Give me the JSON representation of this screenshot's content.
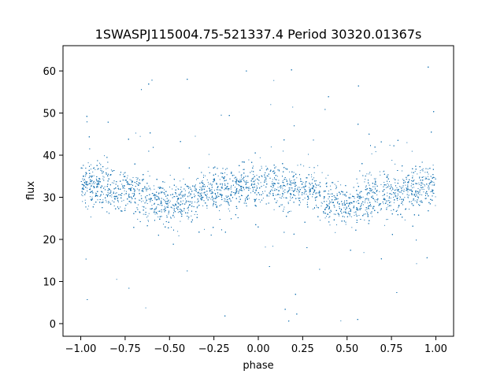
{
  "chart_data": {
    "type": "scatter",
    "title": "1SWASPJ115004.75-521337.4 Period 30320.01367s",
    "xlabel": "phase",
    "ylabel": "flux",
    "xlim": [
      -1.1,
      1.1
    ],
    "ylim": [
      -3,
      66
    ],
    "xticks": [
      -1.0,
      -0.75,
      -0.5,
      -0.25,
      0.0,
      0.25,
      0.5,
      0.75,
      1.0
    ],
    "xtick_labels": [
      "−1.00",
      "−0.75",
      "−0.50",
      "−0.25",
      "0.00",
      "0.25",
      "0.50",
      "0.75",
      "1.00"
    ],
    "yticks": [
      0,
      10,
      20,
      30,
      40,
      50,
      60
    ],
    "ytick_labels": [
      "0",
      "10",
      "20",
      "30",
      "40",
      "50",
      "60"
    ],
    "grid": false,
    "marker_color": "#1f77b4",
    "series": [
      {
        "x_range": [
          -1.0,
          1.0
        ],
        "curve_phase": [
          -1.0,
          -0.75,
          -0.5,
          -0.25,
          0.0,
          0.25,
          0.5,
          0.75,
          1.0
        ],
        "curve_flux": [
          33.5,
          31.5,
          28.5,
          31.5,
          33.5,
          31.5,
          28.5,
          31.5,
          33.5
        ],
        "scatter_core_spread": 3.5,
        "outlier_range": [
          0,
          62
        ]
      }
    ]
  }
}
